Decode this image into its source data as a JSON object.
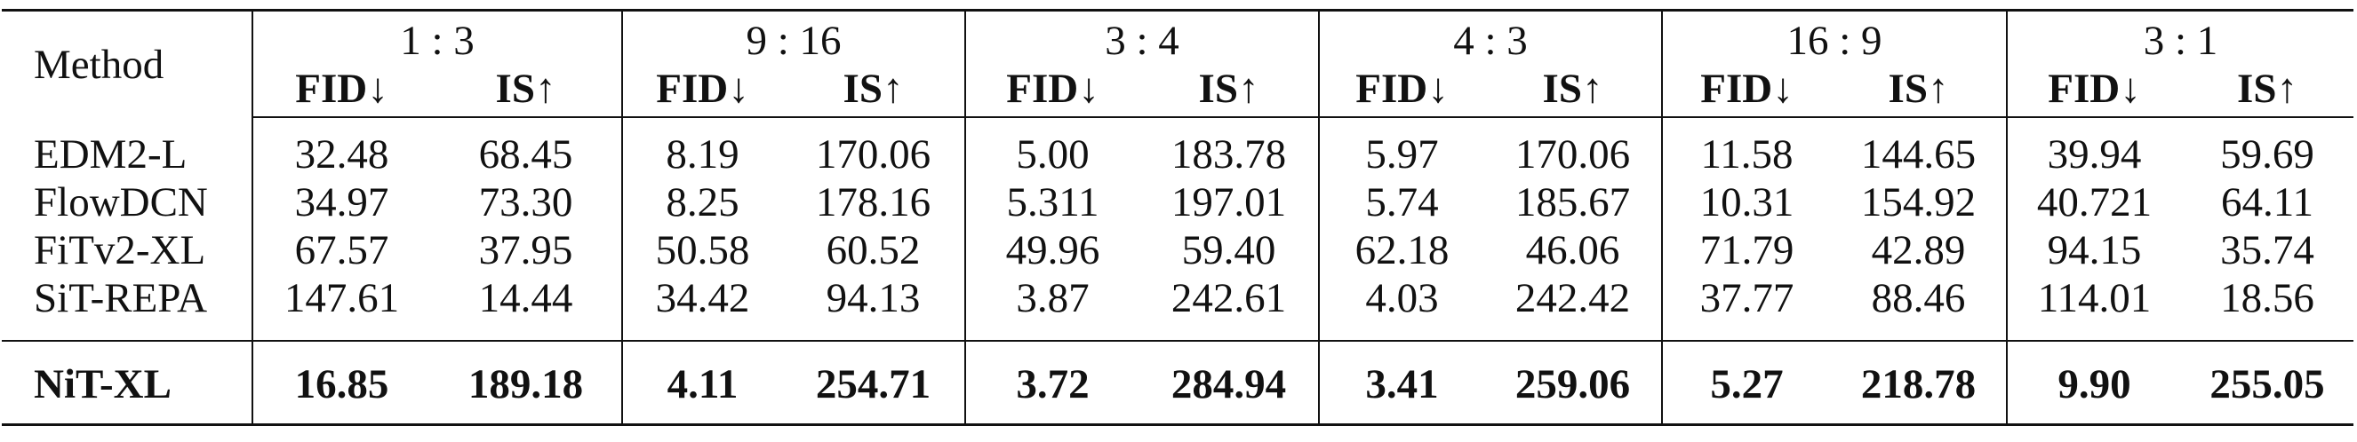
{
  "table": {
    "method_header": "Method",
    "groups": [
      "1 : 3",
      "9 : 16",
      "3 : 4",
      "4 : 3",
      "16 : 9",
      "3 : 1"
    ],
    "subheaders": [
      "FID↓",
      "IS↑"
    ],
    "rows": [
      {
        "method": "EDM2-L",
        "values": [
          "32.48",
          "68.45",
          "8.19",
          "170.06",
          "5.00",
          "183.78",
          "5.97",
          "170.06",
          "11.58",
          "144.65",
          "39.94",
          "59.69"
        ]
      },
      {
        "method": "FlowDCN",
        "values": [
          "34.97",
          "73.30",
          "8.25",
          "178.16",
          "5.311",
          "197.01",
          "5.74",
          "185.67",
          "10.31",
          "154.92",
          "40.721",
          "64.11"
        ]
      },
      {
        "method": "FiTv2-XL",
        "values": [
          "67.57",
          "37.95",
          "50.58",
          "60.52",
          "49.96",
          "59.40",
          "62.18",
          "46.06",
          "71.79",
          "42.89",
          "94.15",
          "35.74"
        ]
      },
      {
        "method": "SiT-REPA",
        "values": [
          "147.61",
          "14.44",
          "34.42",
          "94.13",
          "3.87",
          "242.61",
          "4.03",
          "242.42",
          "37.77",
          "88.46",
          "114.01",
          "18.56"
        ]
      }
    ],
    "best": {
      "method": "NiT-XL",
      "values": [
        "16.85",
        "189.18",
        "4.11",
        "254.71",
        "3.72",
        "284.94",
        "3.41",
        "259.06",
        "5.27",
        "218.78",
        "9.90",
        "255.05"
      ]
    }
  }
}
